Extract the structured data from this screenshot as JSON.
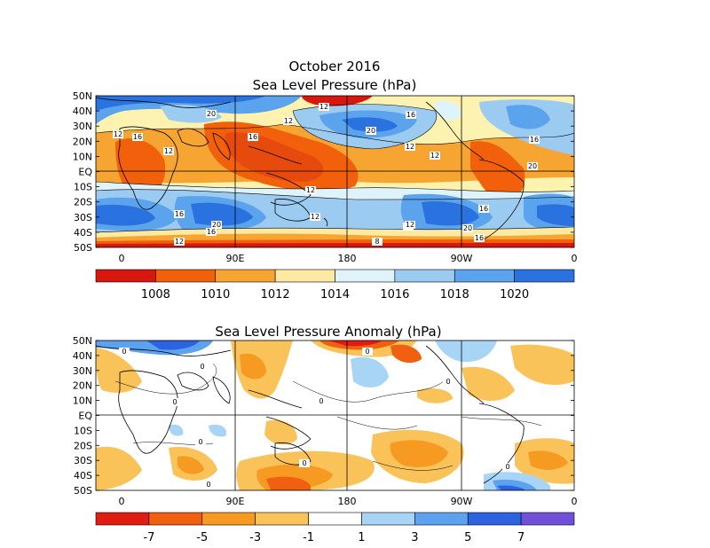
{
  "figure_title": "October 2016",
  "panels": [
    {
      "id": "slp",
      "title": "Sea Level Pressure (hPa)",
      "lat_labels": [
        "50N",
        "40N",
        "30N",
        "20N",
        "10N",
        "EQ",
        "10S",
        "20S",
        "30S",
        "40S",
        "50S"
      ],
      "lon_labels": [
        "0",
        "90E",
        "180",
        "90W",
        "0"
      ],
      "colorbar": {
        "labels": [
          "1008",
          "1010",
          "1012",
          "1014",
          "1016",
          "1018",
          "1020"
        ],
        "colors": [
          "#d8180f",
          "#f2600c",
          "#f7a532",
          "#fde9a2",
          "#dff3fb",
          "#9ccbf2",
          "#5ba3ec",
          "#2a72e0"
        ]
      },
      "contour_labels": [
        "12",
        "16",
        "20",
        "12",
        "16",
        "12",
        "16",
        "12",
        "20",
        "12",
        "12",
        "16",
        "20",
        "12",
        "16",
        "16",
        "20",
        "16",
        "12",
        "12",
        "12",
        "20",
        "12",
        "8",
        "16"
      ]
    },
    {
      "id": "anom",
      "title": "Sea Level Pressure Anomaly (hPa)",
      "lat_labels": [
        "50N",
        "40N",
        "30N",
        "20N",
        "10N",
        "EQ",
        "10S",
        "20S",
        "30S",
        "40S",
        "50S"
      ],
      "lon_labels": [
        "0",
        "90E",
        "180",
        "90W",
        "0"
      ],
      "colorbar": {
        "labels": [
          "-7",
          "-5",
          "-3",
          "-1",
          "1",
          "3",
          "5",
          "7"
        ],
        "colors": [
          "#e01d10",
          "#f06010",
          "#f79a22",
          "#f9c35a",
          "#ffffff",
          "#a8d4f5",
          "#5ca2ee",
          "#2d63e1",
          "#7050d8"
        ]
      },
      "contour_labels": [
        "0",
        "0",
        "0",
        "0",
        "0",
        "0",
        "0",
        "0",
        "0",
        "0"
      ]
    }
  ]
}
